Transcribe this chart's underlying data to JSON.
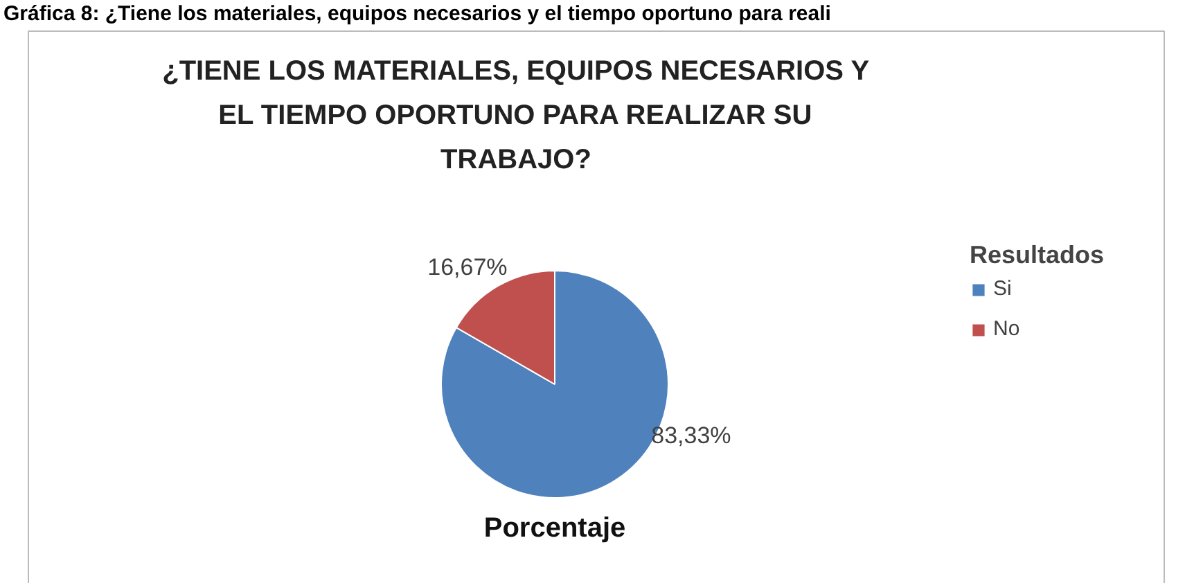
{
  "chart_data": {
    "type": "pie",
    "title": "¿TIENE LOS MATERIALES, EQUIPOS NECESARIOS Y\nEL TIEMPO OPORTUNO PARA REALIZAR SU\nTRABAJO?",
    "xlabel": "Porcentaje",
    "legend_title": "Resultados",
    "annotations": [
      "Gráfica 8: ¿Tiene los materiales, equipos necesarios y el tiempo oportuno para reali"
    ],
    "categories": [
      "Si",
      "No"
    ],
    "values": [
      83.33,
      16.67
    ],
    "colors": [
      "#4f81bd",
      "#c0504d"
    ],
    "value_labels": [
      "83,33%",
      "16,67%"
    ],
    "legend": "right"
  }
}
